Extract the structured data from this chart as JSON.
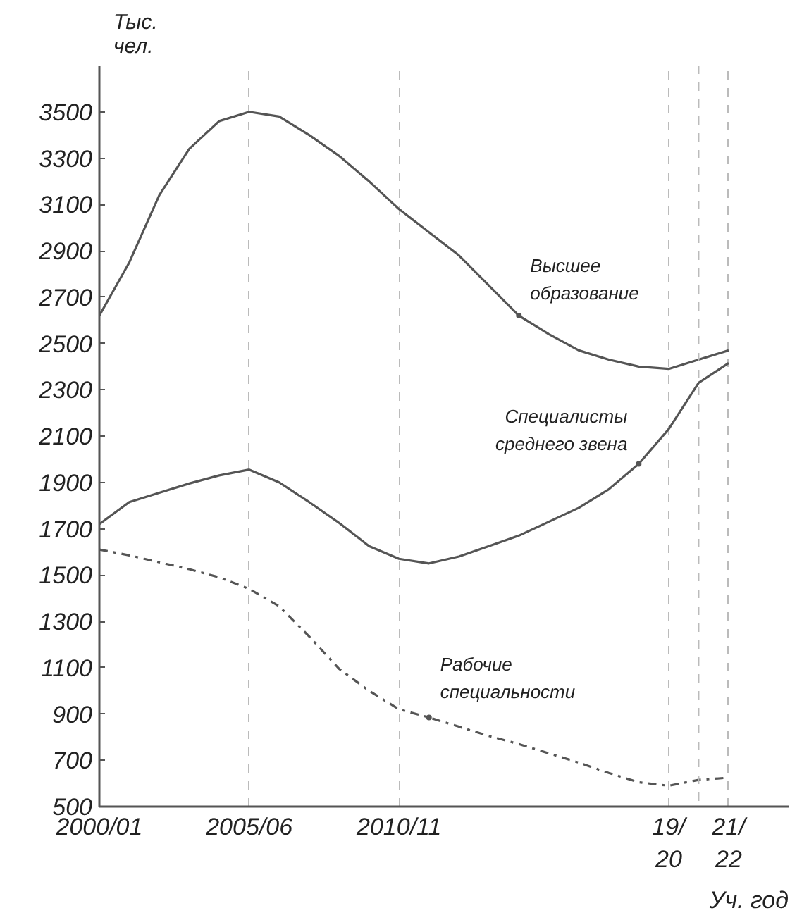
{
  "chart_data": {
    "type": "line",
    "ylabel": "Тыс.\nчел.",
    "xlabel": "Уч. год",
    "categories": [
      "2000/01",
      null,
      null,
      null,
      null,
      "2005/06",
      null,
      null,
      null,
      null,
      "2010/11",
      null,
      null,
      null,
      null,
      null,
      null,
      null,
      null,
      "19/\n20",
      null,
      "21/\n22"
    ],
    "ylim": [
      500,
      3700
    ],
    "yticks": [
      500,
      700,
      900,
      1100,
      1300,
      1500,
      1700,
      1900,
      2100,
      2300,
      2500,
      2700,
      2900,
      3100,
      3300,
      3500
    ],
    "grid": "x",
    "marker": "none",
    "series": [
      {
        "name": "Высшее\nобразование",
        "color": "#555555",
        "line_style": "solid",
        "values": [
          2620,
          2850,
          3140,
          3340,
          3460,
          3500,
          3480,
          3400,
          3310,
          3200,
          3080,
          2980,
          2880,
          2750,
          2620,
          2540,
          2470,
          2430,
          2400,
          2390,
          2430,
          2470
        ]
      },
      {
        "name": "Специалисты\nсреднего звена",
        "color": "#555555",
        "line_style": "solid",
        "values": [
          1720,
          1815,
          1855,
          1895,
          1930,
          1955,
          1900,
          1815,
          1725,
          1625,
          1570,
          1550,
          1580,
          1625,
          1670,
          1730,
          1790,
          1870,
          1980,
          2130,
          2330,
          2415
        ]
      },
      {
        "name": "Рабочие\nспециальности",
        "color": "#555555",
        "line_style": "dashdot",
        "values": [
          1610,
          1585,
          1555,
          1525,
          1490,
          1440,
          1365,
          1235,
          1095,
          1000,
          920,
          885,
          845,
          805,
          770,
          730,
          690,
          645,
          605,
          590,
          615,
          625
        ]
      }
    ]
  }
}
